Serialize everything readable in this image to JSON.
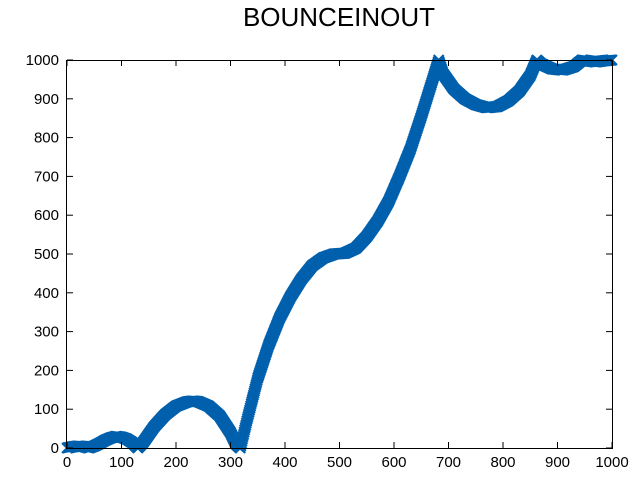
{
  "chart_data": {
    "type": "scatter",
    "title": "BOUNCEINOUT",
    "xlabel": "",
    "ylabel": "",
    "xlim": [
      0,
      1000
    ],
    "ylim": [
      0,
      1000
    ],
    "x_ticks": [
      "0",
      "100",
      "200",
      "300",
      "400",
      "500",
      "600",
      "700",
      "800",
      "900",
      "1000"
    ],
    "y_ticks": [
      "0",
      "100",
      "200",
      "300",
      "400",
      "500",
      "600",
      "700",
      "800",
      "900",
      "1000"
    ],
    "grid": false,
    "legend": "none",
    "marker": "cross",
    "series_color": "#0060ad",
    "series": [
      {
        "points": [
          [
            0,
            0
          ],
          [
            10,
            3
          ],
          [
            20,
            5
          ],
          [
            30,
            4
          ],
          [
            40,
            0
          ],
          [
            50,
            5
          ],
          [
            60,
            12
          ],
          [
            70,
            20
          ],
          [
            80,
            26
          ],
          [
            90,
            30
          ],
          [
            100,
            28
          ],
          [
            110,
            23
          ],
          [
            120,
            14
          ],
          [
            130,
            0
          ],
          [
            140,
            15
          ],
          [
            160,
            55
          ],
          [
            180,
            86
          ],
          [
            200,
            108
          ],
          [
            220,
            119
          ],
          [
            230,
            121
          ],
          [
            240,
            120
          ],
          [
            260,
            108
          ],
          [
            280,
            83
          ],
          [
            300,
            40
          ],
          [
            310,
            10
          ],
          [
            318,
            0
          ],
          [
            330,
            70
          ],
          [
            350,
            180
          ],
          [
            370,
            265
          ],
          [
            390,
            335
          ],
          [
            410,
            390
          ],
          [
            430,
            435
          ],
          [
            450,
            470
          ],
          [
            470,
            490
          ],
          [
            490,
            500
          ],
          [
            510,
            502
          ],
          [
            530,
            515
          ],
          [
            550,
            545
          ],
          [
            570,
            585
          ],
          [
            590,
            635
          ],
          [
            610,
            700
          ],
          [
            630,
            770
          ],
          [
            650,
            855
          ],
          [
            670,
            945
          ],
          [
            682,
            1000
          ],
          [
            690,
            965
          ],
          [
            710,
            925
          ],
          [
            730,
            900
          ],
          [
            750,
            885
          ],
          [
            770,
            877
          ],
          [
            790,
            880
          ],
          [
            810,
            895
          ],
          [
            830,
            920
          ],
          [
            850,
            960
          ],
          [
            862,
            1000
          ],
          [
            870,
            990
          ],
          [
            890,
            977
          ],
          [
            910,
            974
          ],
          [
            930,
            983
          ],
          [
            945,
            1000
          ],
          [
            955,
            998
          ],
          [
            970,
            995
          ],
          [
            985,
            998
          ],
          [
            1000,
            1000
          ]
        ]
      }
    ]
  }
}
